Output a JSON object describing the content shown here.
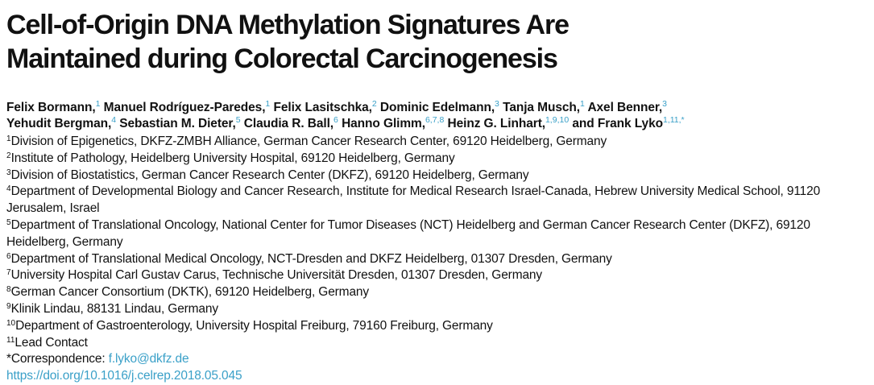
{
  "title": {
    "line1": "Cell-of-Origin DNA Methylation Signatures Are",
    "line2": "Maintained during Colorectal Carcinogenesis"
  },
  "authors": [
    {
      "name": "Felix Bormann,",
      "aff": "1"
    },
    {
      "name": "Manuel Rodríguez-Paredes,",
      "aff": "1"
    },
    {
      "name": "Felix Lasitschka,",
      "aff": "2"
    },
    {
      "name": "Dominic Edelmann,",
      "aff": "3"
    },
    {
      "name": "Tanja Musch,",
      "aff": "1"
    },
    {
      "name": "Axel Benner,",
      "aff": "3"
    },
    {
      "name": "Yehudit Bergman,",
      "aff": "4"
    },
    {
      "name": "Sebastian M. Dieter,",
      "aff": "5"
    },
    {
      "name": "Claudia R. Ball,",
      "aff": "6"
    },
    {
      "name": "Hanno Glimm,",
      "aff": "6,7,8"
    },
    {
      "name": "Heinz G. Linhart,",
      "aff": "1,9,10"
    },
    {
      "name": "and Frank Lyko",
      "aff": "1,11,*"
    }
  ],
  "affiliations": [
    {
      "num": "1",
      "text": "Division of Epigenetics, DKFZ-ZMBH Alliance, German Cancer Research Center, 69120 Heidelberg, Germany"
    },
    {
      "num": "2",
      "text": "Institute of Pathology, Heidelberg University Hospital, 69120 Heidelberg, Germany"
    },
    {
      "num": "3",
      "text": "Division of Biostatistics, German Cancer Research Center (DKFZ), 69120 Heidelberg, Germany"
    },
    {
      "num": "4",
      "text": "Department of Developmental Biology and Cancer Research, Institute for Medical Research Israel-Canada, Hebrew University Medical School, 91120 Jerusalem, Israel"
    },
    {
      "num": "5",
      "text": "Department of Translational Oncology, National Center for Tumor Diseases (NCT) Heidelberg and German Cancer Research Center (DKFZ), 69120 Heidelberg, Germany"
    },
    {
      "num": "6",
      "text": "Department of Translational Medical Oncology, NCT-Dresden and DKFZ Heidelberg, 01307 Dresden, Germany"
    },
    {
      "num": "7",
      "text": "University Hospital Carl Gustav Carus, Technische Universität Dresden, 01307 Dresden, Germany"
    },
    {
      "num": "8",
      "text": "German Cancer Consortium (DKTK), 69120 Heidelberg, Germany"
    },
    {
      "num": "9",
      "text": "Klinik Lindau, 88131 Lindau, Germany"
    },
    {
      "num": "10",
      "text": "Department of Gastroenterology, University Hospital Freiburg, 79160 Freiburg, Germany"
    },
    {
      "num": "11",
      "text": "Lead Contact"
    }
  ],
  "correspondence": {
    "label": "*Correspondence: ",
    "email": "f.lyko@dkfz.de"
  },
  "doi": "https://doi.org/10.1016/j.celrep.2018.05.045"
}
